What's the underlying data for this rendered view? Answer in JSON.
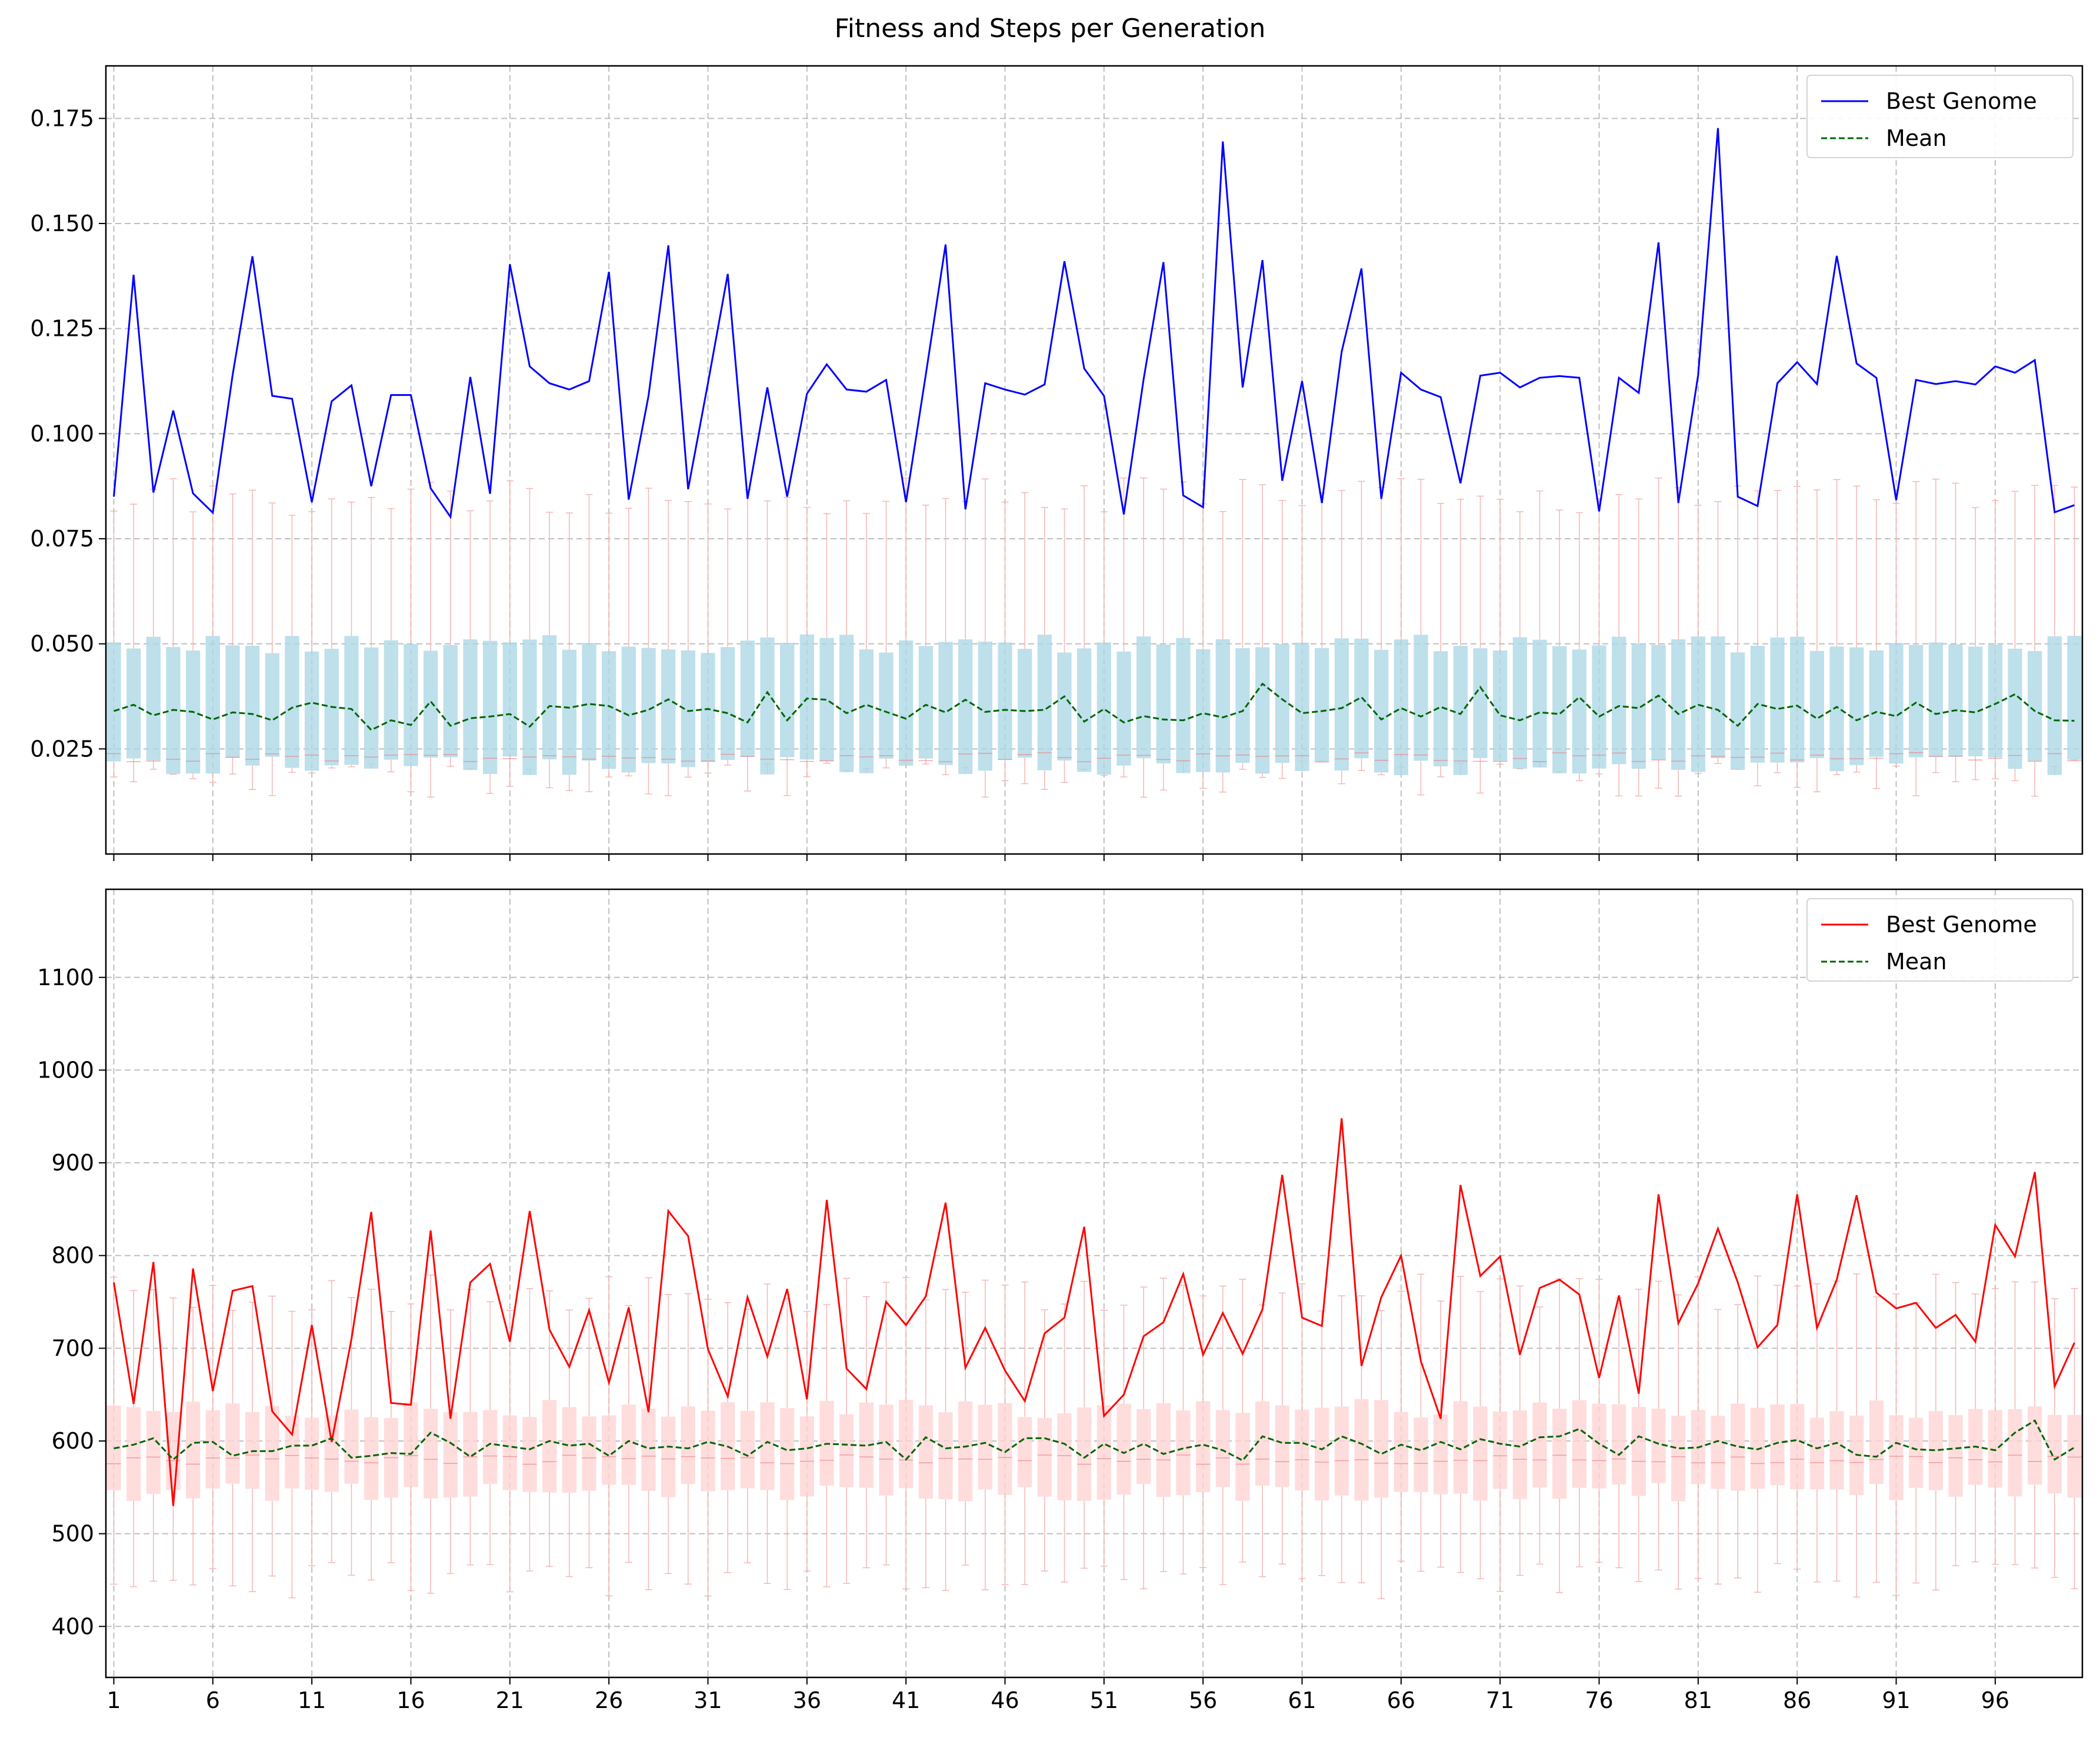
{
  "figure": {
    "title": "Fitness and Steps per Generation"
  },
  "colors": {
    "fitness_best": "#0000ff",
    "steps_best": "#ff0000",
    "mean": "#006400",
    "fitness_box": "#add8e6",
    "steps_box": "#ffd5d5",
    "grid": "#b0b0b0"
  },
  "chart_data": [
    {
      "type": "line",
      "panel": "top",
      "title": "",
      "xlabel": "",
      "ylabel": "",
      "x_ticks": [
        1,
        6,
        11,
        16,
        21,
        26,
        31,
        36,
        41,
        46,
        51,
        56,
        61,
        66,
        71,
        76,
        81,
        86,
        91,
        96
      ],
      "y_ticks": [
        "0.025",
        "0.050",
        "0.075",
        "0.100",
        "0.125",
        "0.150",
        "0.175"
      ],
      "xlim": [
        0.6,
        100.4
      ],
      "ylim": [
        0.0,
        0.1875
      ],
      "grid": true,
      "legend_position": "top-right",
      "legend": [
        "Best Genome",
        "Mean"
      ],
      "box_summary": {
        "typical_q1": 0.021,
        "typical_median": 0.023,
        "typical_q3": 0.05,
        "typical_whisker_low": 0.018,
        "typical_whisker_high": 0.085
      },
      "series": [
        {
          "name": "Best Genome",
          "values": [
            0.085,
            0.1378,
            0.086,
            0.1055,
            0.0858,
            0.0812,
            0.114,
            0.1422,
            0.109,
            0.1083,
            0.0837,
            0.1077,
            0.1115,
            0.0875,
            0.1092,
            0.1092,
            0.087,
            0.0802,
            0.1135,
            0.0857,
            0.1403,
            0.116,
            0.112,
            0.1105,
            0.1125,
            0.1385,
            0.0843,
            0.109,
            0.1448,
            0.0868,
            0.112,
            0.138,
            0.0845,
            0.111,
            0.085,
            0.1095,
            0.1165,
            0.1105,
            0.11,
            0.1128,
            0.0837,
            0.114,
            0.145,
            0.082,
            0.112,
            0.1105,
            0.1093,
            0.1117,
            0.141,
            0.1155,
            0.109,
            0.0808,
            0.113,
            0.1408,
            0.0853,
            0.0825,
            0.1695,
            0.111,
            0.1413,
            0.0888,
            0.1125,
            0.0835,
            0.1195,
            0.1393,
            0.0845,
            0.1145,
            0.1105,
            0.1087,
            0.0882,
            0.1138,
            0.1145,
            0.111,
            0.1133,
            0.1137,
            0.1133,
            0.0815,
            0.1133,
            0.1097,
            0.1455,
            0.0835,
            0.114,
            0.1727,
            0.085,
            0.0828,
            0.112,
            0.117,
            0.1118,
            0.1423,
            0.1167,
            0.1133,
            0.0842,
            0.1128,
            0.1118,
            0.1125,
            0.1117,
            0.116,
            0.1145,
            0.1175,
            0.0813,
            0.083
          ]
        },
        {
          "name": "Mean",
          "values": [
            0.034,
            0.0355,
            0.033,
            0.0343,
            0.0338,
            0.032,
            0.0337,
            0.0333,
            0.0318,
            0.0348,
            0.036,
            0.035,
            0.0345,
            0.0295,
            0.0318,
            0.0307,
            0.0363,
            0.0305,
            0.0323,
            0.0327,
            0.0333,
            0.0303,
            0.0352,
            0.0348,
            0.0357,
            0.0352,
            0.033,
            0.0343,
            0.0368,
            0.034,
            0.0345,
            0.0335,
            0.0313,
            0.0385,
            0.0318,
            0.037,
            0.0367,
            0.0335,
            0.0355,
            0.0338,
            0.0322,
            0.0355,
            0.0337,
            0.0367,
            0.0338,
            0.0343,
            0.034,
            0.0343,
            0.0375,
            0.0315,
            0.0345,
            0.0313,
            0.0328,
            0.032,
            0.0318,
            0.0335,
            0.0325,
            0.034,
            0.0405,
            0.0368,
            0.0335,
            0.034,
            0.0347,
            0.0373,
            0.032,
            0.0347,
            0.0327,
            0.035,
            0.0333,
            0.0397,
            0.033,
            0.0318,
            0.0337,
            0.0333,
            0.0373,
            0.0327,
            0.0352,
            0.0347,
            0.0377,
            0.0333,
            0.0355,
            0.0343,
            0.0305,
            0.0357,
            0.0345,
            0.0353,
            0.0322,
            0.035,
            0.0318,
            0.0338,
            0.0328,
            0.036,
            0.0333,
            0.0342,
            0.0337,
            0.0357,
            0.038,
            0.034,
            0.0318,
            0.0317
          ]
        }
      ]
    },
    {
      "type": "line",
      "panel": "bottom",
      "title": "",
      "xlabel": "",
      "ylabel": "",
      "x_ticks": [
        1,
        6,
        11,
        16,
        21,
        26,
        31,
        36,
        41,
        46,
        51,
        56,
        61,
        66,
        71,
        76,
        81,
        86,
        91,
        96
      ],
      "y_ticks": [
        "400",
        "500",
        "600",
        "700",
        "800",
        "900",
        "1000",
        "1100"
      ],
      "xlim": [
        0.6,
        100.4
      ],
      "ylim": [
        345,
        1195
      ],
      "grid": true,
      "legend_position": "top-right",
      "legend": [
        "Best Genome",
        "Mean"
      ],
      "box_summary": {
        "typical_q1": 545,
        "typical_median": 580,
        "typical_q3": 635,
        "typical_whisker_low": 450,
        "typical_whisker_high": 760
      },
      "series": [
        {
          "name": "Best Genome",
          "values": [
            771,
            640,
            793,
            530,
            786,
            654,
            762,
            767,
            632,
            607,
            725,
            599,
            710,
            847,
            641,
            639,
            827,
            624,
            771,
            791,
            707,
            848,
            720,
            680,
            741,
            663,
            744,
            631,
            848,
            821,
            699,
            648,
            755,
            691,
            764,
            645,
            860,
            678,
            656,
            750,
            725,
            756,
            857,
            679,
            722,
            676,
            643,
            716,
            733,
            831,
            627,
            650,
            713,
            728,
            780,
            693,
            738,
            694,
            742,
            887,
            733,
            724,
            948,
            681,
            755,
            800,
            686,
            624,
            876,
            778,
            799,
            693,
            765,
            774,
            758,
            668,
            757,
            651,
            866,
            727,
            770,
            829,
            771,
            701,
            725,
            866,
            722,
            774,
            865,
            760,
            743,
            749,
            722,
            736,
            707,
            833,
            799,
            890,
            659,
            706
          ]
        },
        {
          "name": "Mean",
          "values": [
            592,
            596,
            603,
            580,
            598,
            599,
            584,
            589,
            589,
            595,
            595,
            603,
            582,
            584,
            587,
            586,
            609,
            598,
            583,
            597,
            594,
            591,
            600,
            595,
            597,
            584,
            600,
            592,
            594,
            592,
            599,
            594,
            584,
            599,
            590,
            592,
            597,
            596,
            595,
            599,
            580,
            604,
            592,
            594,
            598,
            588,
            603,
            603,
            597,
            582,
            597,
            587,
            597,
            586,
            592,
            596,
            590,
            579,
            605,
            598,
            598,
            591,
            605,
            597,
            586,
            596,
            590,
            599,
            591,
            602,
            597,
            594,
            604,
            605,
            613,
            597,
            585,
            605,
            597,
            592,
            593,
            600,
            594,
            591,
            598,
            601,
            592,
            598,
            585,
            583,
            598,
            591,
            590,
            592,
            594,
            590,
            609,
            622,
            580,
            593
          ]
        }
      ]
    }
  ]
}
